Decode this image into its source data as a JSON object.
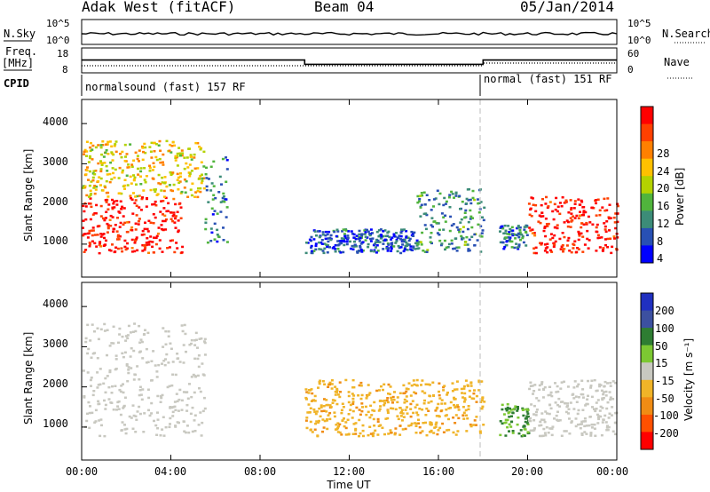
{
  "header": {
    "station": "Adak West (fitACF)",
    "beam": "Beam 04",
    "date": "05/Jan/2014"
  },
  "strip": {
    "nsky_label": "N.Sky",
    "nsky_ticks": [
      "10^5",
      "10^0"
    ],
    "nsearch_label": "N.Search",
    "nsearch_ticks": [
      "10^5",
      "10^0"
    ],
    "freq_label": "Freq.",
    "freq_unit": "[MHz]",
    "freq_ticks": [
      "18",
      "8"
    ],
    "nave_label": "Nave",
    "nave_ticks": [
      "60",
      "0"
    ],
    "cpid_label": "CPID",
    "cpid_segments": [
      "normalsound (fast) 157 RF",
      "normal (fast) 151 RF"
    ]
  },
  "power_panel": {
    "ylabel": "Slant Range [km]",
    "yticks": [
      "4000",
      "3000",
      "2000",
      "1000"
    ],
    "colorbar_label": "Power [dB]",
    "colorbar_ticks": [
      "28",
      "24",
      "20",
      "16",
      "12",
      "8",
      "4"
    ],
    "colors": [
      "#ff0000",
      "#ff4000",
      "#ff8000",
      "#ffc000",
      "#b4d200",
      "#50b43c",
      "#3c8c78",
      "#2850b4",
      "#0000ff"
    ]
  },
  "velocity_panel": {
    "ylabel": "Slant Range [km]",
    "yticks": [
      "4000",
      "3000",
      "2000",
      "1000"
    ],
    "colorbar_label": "Velocity [m s⁻¹]",
    "colorbar_ticks": [
      "200",
      "100",
      "50",
      "15",
      "-15",
      "-50",
      "-100",
      "-200"
    ],
    "colors": [
      "#2030c0",
      "#3c50a0",
      "#2e7d32",
      "#7cc832",
      "#c8c8c0",
      "#f0b428",
      "#f08c14",
      "#ff5000",
      "#ff0000"
    ]
  },
  "xaxis": {
    "label": "Time UT",
    "ticks": [
      "00:00",
      "04:00",
      "08:00",
      "12:00",
      "16:00",
      "20:00",
      "00:00"
    ]
  },
  "chart_data": {
    "type": "heatmap",
    "title": "Adak West (fitACF)   Beam 04   05/Jan/2014",
    "xlabel": "Time UT",
    "ylabel": "Slant Range [km]",
    "xlim": [
      "00:00",
      "24:00"
    ],
    "ylim": [
      180,
      4600
    ],
    "frequency_mhz_segments": [
      {
        "start": "00:00",
        "end": "10:00",
        "value": 14
      },
      {
        "start": "10:00",
        "end": "18:00",
        "value": 12
      },
      {
        "start": "18:00",
        "end": "24:00",
        "value": 14
      }
    ],
    "echo_regions_power_db": [
      {
        "start_hour": 0,
        "end_hour": 4.5,
        "range_km": [
          800,
          2200
        ],
        "power_db": 28
      },
      {
        "start_hour": 0,
        "end_hour": 5.5,
        "range_km": [
          2200,
          3600
        ],
        "power_db": 18
      },
      {
        "start_hour": 5.5,
        "end_hour": 6.5,
        "range_km": [
          1000,
          3200
        ],
        "power_db": 8
      },
      {
        "start_hour": 10.0,
        "end_hour": 15.0,
        "range_km": [
          800,
          1400
        ],
        "power_db": 6
      },
      {
        "start_hour": 15.0,
        "end_hour": 18.0,
        "range_km": [
          800,
          2400
        ],
        "power_db": 9
      },
      {
        "start_hour": 18.7,
        "end_hour": 20.0,
        "range_km": [
          900,
          1500
        ],
        "power_db": 8
      },
      {
        "start_hour": 20.0,
        "end_hour": 24.0,
        "range_km": [
          800,
          2200
        ],
        "power_db": 28
      }
    ],
    "echo_regions_velocity_ms": [
      {
        "start_hour": 0,
        "end_hour": 5.5,
        "range_km": [
          800,
          3600
        ],
        "velocity": 0
      },
      {
        "start_hour": 10.0,
        "end_hour": 18.0,
        "range_km": [
          800,
          2200
        ],
        "velocity": -40
      },
      {
        "start_hour": 18.7,
        "end_hour": 20.0,
        "range_km": [
          800,
          1600
        ],
        "velocity": 30
      },
      {
        "start_hour": 20.0,
        "end_hour": 24.0,
        "range_km": [
          800,
          2200
        ],
        "velocity": 0
      }
    ]
  }
}
